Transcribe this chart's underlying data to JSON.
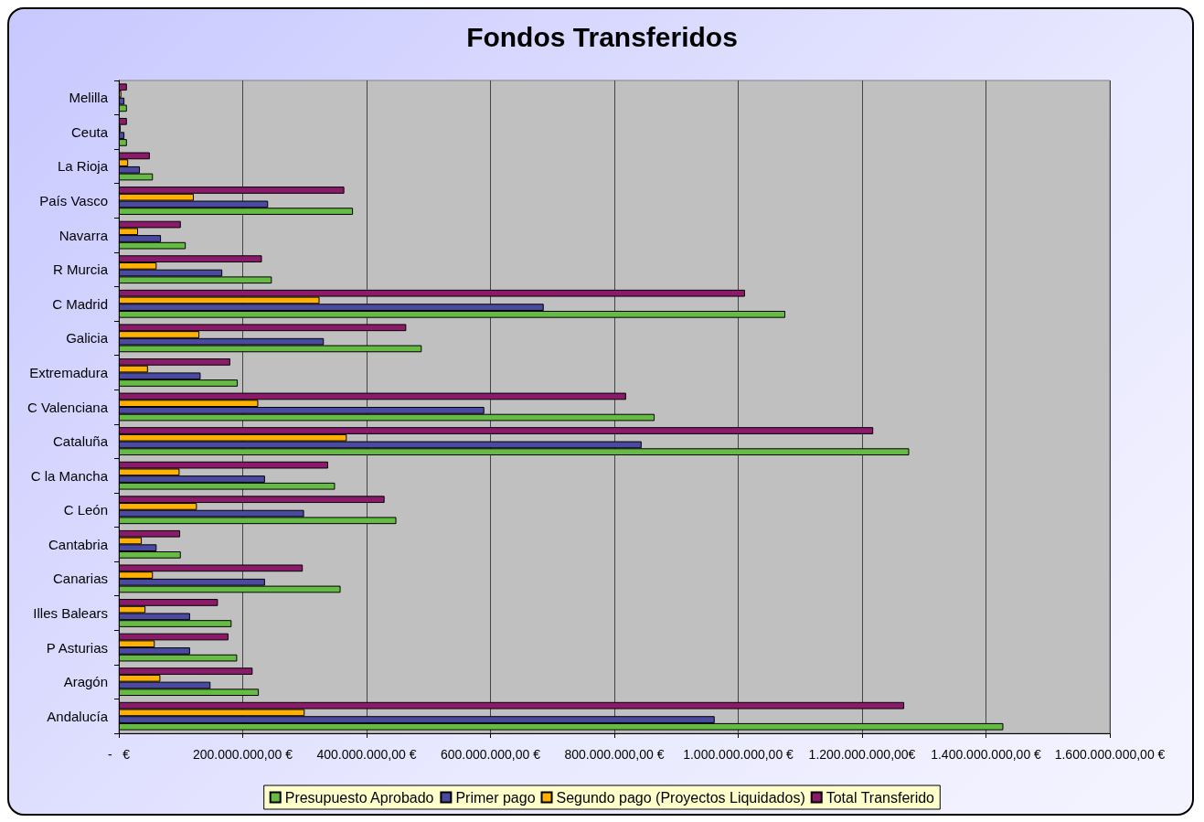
{
  "chart_data": {
    "type": "bar",
    "orientation": "horizontal",
    "title": "Fondos Transferidos",
    "categories": [
      "Melilla",
      "Ceuta",
      "La Rioja",
      "País Vasco",
      "Navarra",
      "R Murcia",
      "C Madrid",
      "Galicia",
      "Extremadura",
      "C Valenciana",
      "Cataluña",
      "C la Mancha",
      "C León",
      "Cantabria",
      "Canarias",
      "Illes Balears",
      "P Asturias",
      "Aragón",
      "Andalucía"
    ],
    "series": [
      {
        "name": "Presupuesto Aprobado",
        "color": "#66bb44",
        "values": [
          13000000,
          13000000,
          55000000,
          378000000,
          108000000,
          247000000,
          1076000000,
          489000000,
          192000000,
          865000000,
          1276000000,
          349000000,
          448000000,
          100000000,
          358000000,
          182000000,
          191000000,
          226000000,
          1428000000
        ]
      },
      {
        "name": "Primer pago",
        "color": "#4a4aa0",
        "values": [
          9000000,
          9000000,
          34000000,
          241000000,
          68000000,
          167000000,
          686000000,
          331000000,
          132000000,
          590000000,
          844000000,
          236000000,
          299000000,
          61000000,
          236000000,
          115000000,
          115000000,
          148000000,
          962000000
        ]
      },
      {
        "name": "Segundo pago (Proyectos Liquidados)",
        "color": "#ffb000",
        "values": [
          4000000,
          3000000,
          15000000,
          121000000,
          31000000,
          61000000,
          324000000,
          130000000,
          47000000,
          225000000,
          368000000,
          98000000,
          126000000,
          37000000,
          55000000,
          43000000,
          58000000,
          67000000,
          300000000
        ]
      },
      {
        "name": "Total Transferido",
        "color": "#8b1a6b",
        "values": [
          13000000,
          13000000,
          50000000,
          364000000,
          100000000,
          231000000,
          1011000000,
          464000000,
          180000000,
          819000000,
          1218000000,
          338000000,
          429000000,
          99000000,
          297000000,
          160000000,
          177000000,
          216000000,
          1268000000
        ]
      }
    ],
    "xlim": [
      0,
      1600000000
    ],
    "xticks": [
      {
        "value": 0,
        "label": "-   €"
      },
      {
        "value": 200000000,
        "label": "200.000.000,00 €"
      },
      {
        "value": 400000000,
        "label": "400.000.000,00 €"
      },
      {
        "value": 600000000,
        "label": "600.000.000,00 €"
      },
      {
        "value": 800000000,
        "label": "800.000.000,00 €"
      },
      {
        "value": 1000000000,
        "label": "1.000.000.000,00 €"
      },
      {
        "value": 1200000000,
        "label": "1.200.000.000,00€"
      },
      {
        "value": 1400000000,
        "label": "1.400.000.000,00 €"
      },
      {
        "value": 1600000000,
        "label": "1.600.000.000,00 €"
      }
    ],
    "grid": "x",
    "legend": "bottom"
  }
}
